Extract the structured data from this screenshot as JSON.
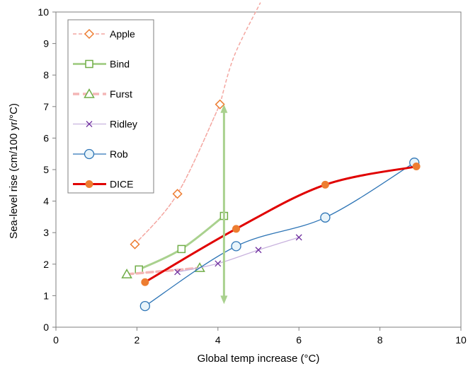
{
  "chart_data": {
    "type": "scatter",
    "title": "",
    "xlabel": "Global temp increase (°C)",
    "ylabel": "Sea-level rise (cm/100 yr/°C)",
    "xlim": [
      0,
      10
    ],
    "ylim": [
      0,
      10
    ],
    "x_ticks": [
      0,
      2,
      4,
      6,
      8,
      10
    ],
    "y_ticks": [
      0,
      1,
      2,
      3,
      4,
      5,
      6,
      7,
      8,
      9,
      10
    ],
    "grid": false,
    "legend_position": "top-left",
    "series": [
      {
        "name": "Apple",
        "color": "#ED7D31",
        "line_color": "#F4A6A0",
        "line_style": "dashed",
        "marker": "diamond-open",
        "points": [
          [
            1.95,
            2.63
          ],
          [
            3.0,
            4.23
          ],
          [
            4.05,
            7.07
          ]
        ],
        "extension_points": [
          [
            4.05,
            7.07
          ],
          [
            4.4,
            8.6
          ],
          [
            5.05,
            10.3
          ]
        ]
      },
      {
        "name": "Bind",
        "color": "#70AD47",
        "line_color": "#A9D18E",
        "line_style": "solid-thick",
        "marker": "square-open",
        "points": [
          [
            2.05,
            1.83
          ],
          [
            3.1,
            2.48
          ],
          [
            4.15,
            3.53
          ]
        ]
      },
      {
        "name": "Furst",
        "color": "#70AD47",
        "line_color": "#F4B6B6",
        "line_style": "dashed-thick",
        "marker": "triangle-open",
        "points": [
          [
            1.75,
            1.68
          ],
          [
            3.55,
            1.88
          ]
        ]
      },
      {
        "name": "Ridley",
        "color": "#7030A0",
        "line_color": "#C9B3DE",
        "line_style": "solid",
        "marker": "x",
        "points": [
          [
            3.0,
            1.75
          ],
          [
            4.0,
            2.02
          ],
          [
            5.0,
            2.45
          ],
          [
            6.0,
            2.85
          ]
        ]
      },
      {
        "name": "Rob",
        "color": "#2E75B6",
        "line_color": "#2E75B6",
        "line_style": "solid",
        "marker": "circle-open",
        "points": [
          [
            2.2,
            0.67
          ],
          [
            4.45,
            2.57
          ],
          [
            6.65,
            3.48
          ],
          [
            8.85,
            5.22
          ]
        ]
      },
      {
        "name": "DICE",
        "color": "#ED7D31",
        "line_color": "#E00000",
        "line_style": "solid-thick",
        "marker": "circle-filled",
        "points": [
          [
            2.2,
            1.43
          ],
          [
            4.45,
            3.12
          ],
          [
            6.65,
            4.52
          ],
          [
            8.9,
            5.1
          ]
        ]
      }
    ],
    "annotations": [
      {
        "type": "double-arrow",
        "color": "#A9D18E",
        "from": [
          4.15,
          0.8
        ],
        "to": [
          4.15,
          7.0
        ]
      }
    ]
  }
}
